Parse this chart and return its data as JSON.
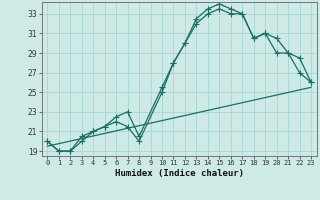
{
  "title": "",
  "xlabel": "Humidex (Indice chaleur)",
  "bg_color": "#cdeae6",
  "grid_color": "#a8d5d0",
  "line_color": "#1a6e64",
  "xlim": [
    -0.5,
    23.5
  ],
  "ylim": [
    18.5,
    34.2
  ],
  "xticks": [
    0,
    1,
    2,
    3,
    4,
    5,
    6,
    7,
    8,
    9,
    10,
    11,
    12,
    13,
    14,
    15,
    16,
    17,
    18,
    19,
    20,
    21,
    22,
    23
  ],
  "yticks": [
    19,
    21,
    23,
    25,
    27,
    29,
    31,
    33
  ],
  "line1_x": [
    0,
    1,
    2,
    3,
    4,
    5,
    6,
    7,
    8,
    10,
    11,
    12,
    13,
    14,
    15,
    16,
    17,
    18,
    19,
    20,
    21,
    22,
    23
  ],
  "line1_y": [
    20.0,
    19.0,
    19.0,
    20.5,
    21.0,
    21.5,
    22.0,
    21.5,
    20.0,
    25.0,
    28.0,
    30.0,
    32.5,
    33.5,
    34.0,
    33.5,
    33.0,
    30.5,
    31.0,
    30.5,
    29.0,
    28.5,
    26.0
  ],
  "line2_x": [
    0,
    1,
    2,
    3,
    4,
    5,
    6,
    7,
    8,
    10,
    11,
    12,
    13,
    14,
    15,
    16,
    17,
    18,
    19,
    20,
    21,
    22,
    23
  ],
  "line2_y": [
    20.0,
    19.0,
    19.0,
    20.0,
    21.0,
    21.5,
    22.5,
    23.0,
    20.5,
    25.5,
    28.0,
    30.0,
    32.0,
    33.0,
    33.5,
    33.0,
    33.0,
    30.5,
    31.0,
    29.0,
    29.0,
    27.0,
    26.0
  ],
  "line3_x": [
    0,
    23
  ],
  "line3_y": [
    19.5,
    25.5
  ]
}
